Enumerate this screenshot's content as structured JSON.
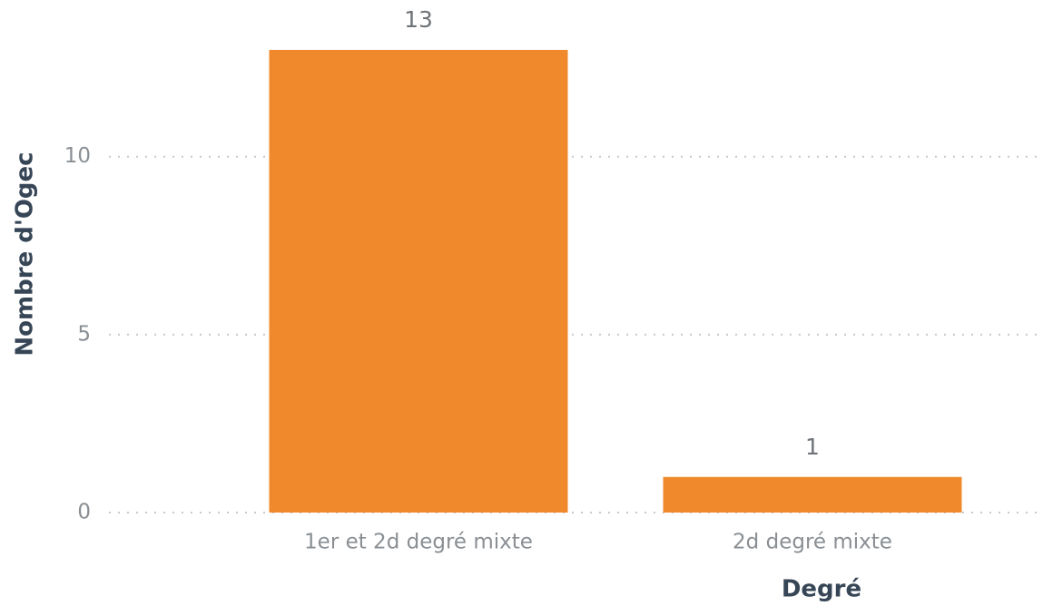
{
  "chart_data": {
    "type": "bar",
    "x_label": "Degré",
    "y_label": "Nombre d'Ogec",
    "categories": [
      "1er et 2d degré mixte",
      "2d degré mixte"
    ],
    "values": [
      13,
      1
    ],
    "color": "#f0882c",
    "ylim": [
      0,
      13
    ],
    "yticks": [
      0,
      5,
      10
    ],
    "grid": true
  }
}
